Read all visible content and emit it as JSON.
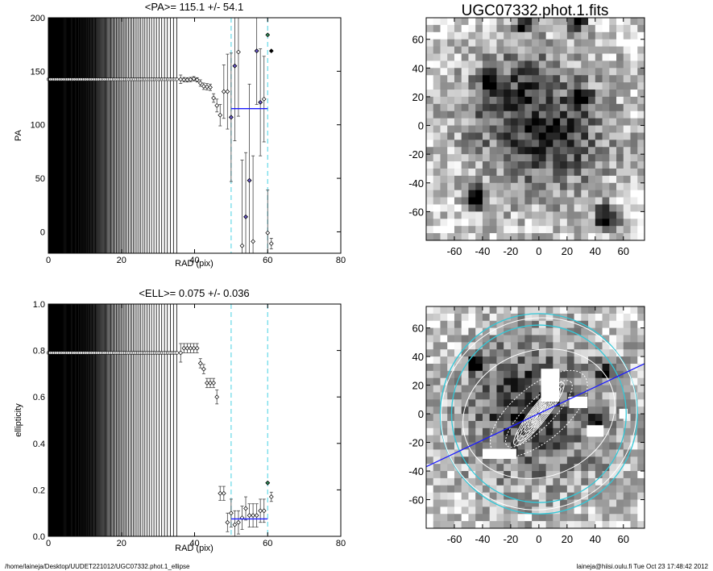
{
  "footer": {
    "left": "/home/laineja/Desktop/UUDET221012/UGC07332.phot.1_ellipse",
    "right": "laineja@hiisi.oulu.fi  Tue Oct 23 17:48:42 2012"
  },
  "chart_data": [
    {
      "type": "scatter",
      "name": "pa-profile",
      "title": "<PA>= 115.1 +/-  54.1",
      "xlabel": "RAD (pix)",
      "ylabel": "PA",
      "xlim": [
        0,
        80
      ],
      "ylim": [
        -20,
        200
      ],
      "xticks": [
        "0",
        "20",
        "40",
        "60",
        "80"
      ],
      "yticks": [
        "0",
        "50",
        "100",
        "150",
        "200"
      ],
      "guides": [
        50,
        60
      ],
      "mean_segment": {
        "x": [
          50,
          60
        ],
        "y": 115.1
      },
      "points": [
        [
          36.2,
          142.5,
          4
        ],
        [
          37.1,
          142.2,
          2
        ],
        [
          38.0,
          142.0,
          2
        ],
        [
          38.9,
          142.3,
          2
        ],
        [
          39.8,
          143.0,
          2
        ],
        [
          40.7,
          142.0,
          2
        ],
        [
          41.6,
          139.0,
          3
        ],
        [
          42.5,
          136.0,
          3
        ],
        [
          43.4,
          135.5,
          3
        ],
        [
          44.3,
          135.0,
          3
        ],
        [
          45.2,
          125.0,
          4
        ],
        [
          46.1,
          118.0,
          6
        ],
        [
          47.0,
          109.0,
          10
        ],
        [
          48.0,
          131.0,
          25
        ],
        [
          49.0,
          131.0,
          35
        ],
        [
          50.0,
          107.0,
          60
        ],
        [
          51.0,
          155.0,
          70
        ],
        [
          52.0,
          168.0,
          60
        ],
        [
          53.0,
          -13.0,
          80
        ],
        [
          54.0,
          14.0,
          60
        ],
        [
          55.0,
          48.0,
          90
        ],
        [
          56.0,
          -9.0,
          80
        ],
        [
          57.0,
          169.0,
          50
        ],
        [
          58.0,
          121.0,
          50
        ],
        [
          59.0,
          124.0,
          40
        ],
        [
          60.0,
          -1.0,
          40
        ],
        [
          61.0,
          -11.0,
          5
        ]
      ],
      "highlight": [
        [
          50.0,
          107.0
        ],
        [
          51.0,
          155.0
        ],
        [
          55.0,
          48.0
        ],
        [
          54.0,
          14.0
        ],
        [
          58.0,
          121.0
        ],
        [
          57.0,
          169.0
        ]
      ],
      "special": [
        [
          60.0,
          184.0,
          "#2e8b57"
        ],
        [
          61.0,
          169.0,
          "#000000"
        ]
      ]
    },
    {
      "type": "scatter",
      "name": "ellipticity-profile",
      "title": "<ELL>= 0.075 +/-  0.036",
      "xlabel": "RAD (pix)",
      "ylabel": "ellipticity",
      "xlim": [
        0,
        80
      ],
      "ylim": [
        0,
        1
      ],
      "xticks": [
        "0",
        "20",
        "40",
        "60",
        "80"
      ],
      "yticks": [
        "0.0",
        "0.2",
        "0.4",
        "0.6",
        "0.8",
        "1.0"
      ],
      "guides": [
        50,
        60
      ],
      "mean_segment": {
        "x": [
          50,
          60
        ],
        "y": 0.075
      },
      "points": [
        [
          36.2,
          0.79,
          0.04
        ],
        [
          37.1,
          0.81,
          0.02
        ],
        [
          38.0,
          0.81,
          0.02
        ],
        [
          38.9,
          0.81,
          0.02
        ],
        [
          39.8,
          0.81,
          0.02
        ],
        [
          40.7,
          0.81,
          0.02
        ],
        [
          41.6,
          0.745,
          0.02
        ],
        [
          42.5,
          0.72,
          0.02
        ],
        [
          43.4,
          0.66,
          0.02
        ],
        [
          44.3,
          0.66,
          0.02
        ],
        [
          45.2,
          0.66,
          0.02
        ],
        [
          46.1,
          0.6,
          0.03
        ],
        [
          47.0,
          0.185,
          0.03
        ],
        [
          48.0,
          0.185,
          0.03
        ],
        [
          49.0,
          0.06,
          0.04
        ],
        [
          50.0,
          0.1,
          0.06
        ],
        [
          51.0,
          0.05,
          0.06
        ],
        [
          52.0,
          0.06,
          0.05
        ],
        [
          53.0,
          0.08,
          0.05
        ],
        [
          54.0,
          0.12,
          0.05
        ],
        [
          55.0,
          0.09,
          0.05
        ],
        [
          56.0,
          0.09,
          0.05
        ],
        [
          57.0,
          0.09,
          0.05
        ],
        [
          58.0,
          0.11,
          0.05
        ],
        [
          59.0,
          0.11,
          0.05
        ],
        [
          60.0,
          0.23,
          0.0
        ],
        [
          61.0,
          0.17,
          0.02
        ]
      ],
      "special": [
        [
          60.0,
          0.23,
          "#2e8b57"
        ]
      ]
    },
    {
      "type": "heatmap",
      "name": "galaxy-image",
      "title": "UGC07332.phot.1.fits",
      "xlim": [
        -80,
        75
      ],
      "ylim": [
        -80,
        75
      ],
      "xticks": [
        "-60",
        "-40",
        "-20",
        "0",
        "20",
        "40",
        "60"
      ],
      "yticks": [
        "-60",
        "-40",
        "-20",
        "0",
        "20",
        "40",
        "60"
      ],
      "blobs": [
        [
          0,
          0,
          45,
          0.45
        ],
        [
          -20,
          20,
          20,
          0.25
        ],
        [
          15,
          -10,
          20,
          0.2
        ]
      ],
      "stars": [
        [
          48,
          -65,
          6
        ],
        [
          -45,
          -50,
          5
        ],
        [
          27,
          72,
          5
        ],
        [
          -10,
          70,
          4
        ],
        [
          -35,
          30,
          4
        ],
        [
          30,
          20,
          4
        ]
      ],
      "noise_seed": 11
    },
    {
      "type": "heatmap",
      "name": "ellipse-fit-image",
      "xlim": [
        -80,
        75
      ],
      "ylim": [
        -80,
        75
      ],
      "xticks": [
        "-60",
        "-40",
        "-20",
        "0",
        "20",
        "40",
        "60"
      ],
      "yticks": [
        "-60",
        "-40",
        "-20",
        "0",
        "20",
        "40",
        "60"
      ],
      "blobs": [
        [
          0,
          0,
          50,
          0.45
        ],
        [
          -15,
          10,
          22,
          0.25
        ]
      ],
      "stars": [
        [
          48,
          30,
          4
        ],
        [
          -45,
          35,
          4
        ],
        [
          40,
          -5,
          4
        ]
      ],
      "noise_seed": 23,
      "masks": [
        [
          8,
          20,
          13,
          23
        ],
        [
          28,
          8,
          13,
          8
        ],
        [
          40,
          -12,
          12,
          8
        ],
        [
          -28,
          -28,
          24,
          7
        ],
        [
          60,
          0,
          6,
          7
        ]
      ],
      "cyan_circles": [
        62,
        70
      ],
      "white_ellipses": [
        [
          70,
          0.05,
          30
        ],
        [
          55,
          0.2,
          20
        ]
      ],
      "dotted_ellipses": [
        [
          42,
          0.55,
          40
        ],
        [
          32,
          0.7,
          45
        ]
      ],
      "solid_ellipses": [
        28,
        24,
        20,
        16,
        12,
        8
      ],
      "solid_ellipse_ell": 0.79,
      "solid_ellipse_pa": 52,
      "blue_line": [
        [
          -80,
          -37
        ],
        [
          75,
          35
        ]
      ]
    }
  ]
}
